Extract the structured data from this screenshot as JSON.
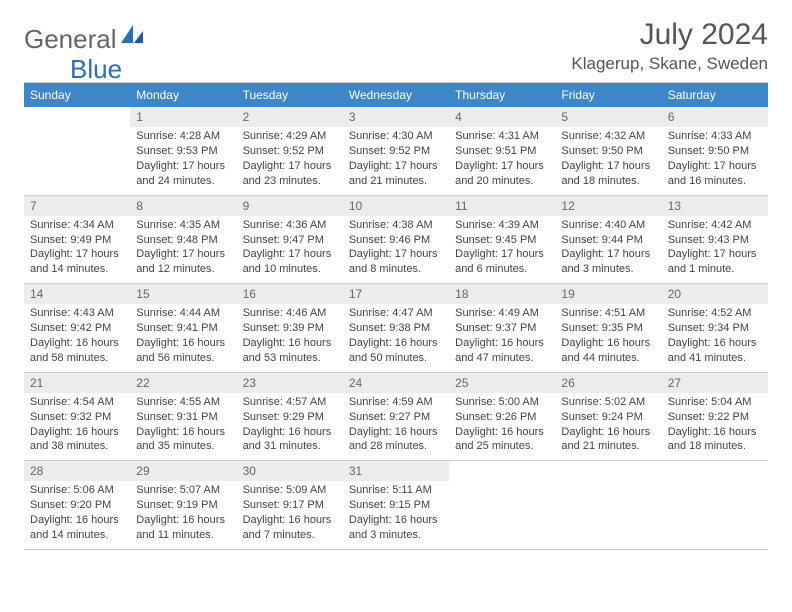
{
  "brand": {
    "general": "General",
    "blue": "Blue"
  },
  "title": "July 2024",
  "location": "Klagerup, Skane, Sweden",
  "day_headers": [
    "Sunday",
    "Monday",
    "Tuesday",
    "Wednesday",
    "Thursday",
    "Friday",
    "Saturday"
  ],
  "colors": {
    "header_bg": "#3d87c9",
    "header_text": "#ffffff",
    "daynum_bg": "#ececec",
    "daynum_text": "#666666",
    "body_text": "#444444",
    "border": "#cccccc",
    "logo_gray": "#666666",
    "logo_blue": "#2d6fb5"
  },
  "layout": {
    "first_weekday_index": 1,
    "num_days": 31
  },
  "days": {
    "1": {
      "sunrise": "4:28 AM",
      "sunset": "9:53 PM",
      "daylight": "17 hours and 24 minutes."
    },
    "2": {
      "sunrise": "4:29 AM",
      "sunset": "9:52 PM",
      "daylight": "17 hours and 23 minutes."
    },
    "3": {
      "sunrise": "4:30 AM",
      "sunset": "9:52 PM",
      "daylight": "17 hours and 21 minutes."
    },
    "4": {
      "sunrise": "4:31 AM",
      "sunset": "9:51 PM",
      "daylight": "17 hours and 20 minutes."
    },
    "5": {
      "sunrise": "4:32 AM",
      "sunset": "9:50 PM",
      "daylight": "17 hours and 18 minutes."
    },
    "6": {
      "sunrise": "4:33 AM",
      "sunset": "9:50 PM",
      "daylight": "17 hours and 16 minutes."
    },
    "7": {
      "sunrise": "4:34 AM",
      "sunset": "9:49 PM",
      "daylight": "17 hours and 14 minutes."
    },
    "8": {
      "sunrise": "4:35 AM",
      "sunset": "9:48 PM",
      "daylight": "17 hours and 12 minutes."
    },
    "9": {
      "sunrise": "4:36 AM",
      "sunset": "9:47 PM",
      "daylight": "17 hours and 10 minutes."
    },
    "10": {
      "sunrise": "4:38 AM",
      "sunset": "9:46 PM",
      "daylight": "17 hours and 8 minutes."
    },
    "11": {
      "sunrise": "4:39 AM",
      "sunset": "9:45 PM",
      "daylight": "17 hours and 6 minutes."
    },
    "12": {
      "sunrise": "4:40 AM",
      "sunset": "9:44 PM",
      "daylight": "17 hours and 3 minutes."
    },
    "13": {
      "sunrise": "4:42 AM",
      "sunset": "9:43 PM",
      "daylight": "17 hours and 1 minute."
    },
    "14": {
      "sunrise": "4:43 AM",
      "sunset": "9:42 PM",
      "daylight": "16 hours and 58 minutes."
    },
    "15": {
      "sunrise": "4:44 AM",
      "sunset": "9:41 PM",
      "daylight": "16 hours and 56 minutes."
    },
    "16": {
      "sunrise": "4:46 AM",
      "sunset": "9:39 PM",
      "daylight": "16 hours and 53 minutes."
    },
    "17": {
      "sunrise": "4:47 AM",
      "sunset": "9:38 PM",
      "daylight": "16 hours and 50 minutes."
    },
    "18": {
      "sunrise": "4:49 AM",
      "sunset": "9:37 PM",
      "daylight": "16 hours and 47 minutes."
    },
    "19": {
      "sunrise": "4:51 AM",
      "sunset": "9:35 PM",
      "daylight": "16 hours and 44 minutes."
    },
    "20": {
      "sunrise": "4:52 AM",
      "sunset": "9:34 PM",
      "daylight": "16 hours and 41 minutes."
    },
    "21": {
      "sunrise": "4:54 AM",
      "sunset": "9:32 PM",
      "daylight": "16 hours and 38 minutes."
    },
    "22": {
      "sunrise": "4:55 AM",
      "sunset": "9:31 PM",
      "daylight": "16 hours and 35 minutes."
    },
    "23": {
      "sunrise": "4:57 AM",
      "sunset": "9:29 PM",
      "daylight": "16 hours and 31 minutes."
    },
    "24": {
      "sunrise": "4:59 AM",
      "sunset": "9:27 PM",
      "daylight": "16 hours and 28 minutes."
    },
    "25": {
      "sunrise": "5:00 AM",
      "sunset": "9:26 PM",
      "daylight": "16 hours and 25 minutes."
    },
    "26": {
      "sunrise": "5:02 AM",
      "sunset": "9:24 PM",
      "daylight": "16 hours and 21 minutes."
    },
    "27": {
      "sunrise": "5:04 AM",
      "sunset": "9:22 PM",
      "daylight": "16 hours and 18 minutes."
    },
    "28": {
      "sunrise": "5:06 AM",
      "sunset": "9:20 PM",
      "daylight": "16 hours and 14 minutes."
    },
    "29": {
      "sunrise": "5:07 AM",
      "sunset": "9:19 PM",
      "daylight": "16 hours and 11 minutes."
    },
    "30": {
      "sunrise": "5:09 AM",
      "sunset": "9:17 PM",
      "daylight": "16 hours and 7 minutes."
    },
    "31": {
      "sunrise": "5:11 AM",
      "sunset": "9:15 PM",
      "daylight": "16 hours and 3 minutes."
    }
  },
  "labels": {
    "sunrise": "Sunrise:",
    "sunset": "Sunset:",
    "daylight": "Daylight:"
  }
}
